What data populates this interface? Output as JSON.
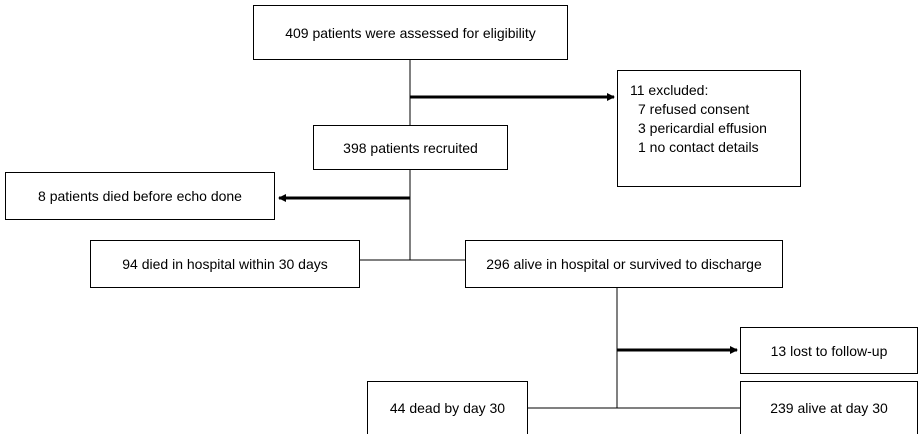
{
  "nodes": [
    {
      "label": "409 patients were assessed for eligibility"
    },
    {
      "label": "11 excluded:",
      "details": [
        "7 refused consent",
        "3 pericardial effusion",
        "1 no contact details"
      ]
    },
    {
      "label": "398 patients recruited"
    },
    {
      "label": "8 patients died before echo done"
    },
    {
      "label": "94 died in hospital within 30 days"
    },
    {
      "label": "296 alive in hospital or survived to discharge"
    },
    {
      "label": "13 lost to follow-up"
    },
    {
      "label": "44 dead by day 30"
    },
    {
      "label": "239 alive at day 30"
    }
  ]
}
